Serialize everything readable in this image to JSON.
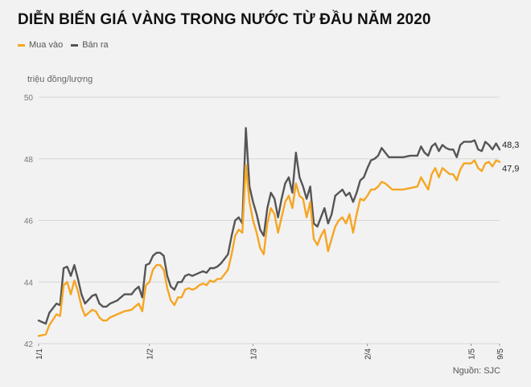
{
  "title": "DIỄN BIẾN GIÁ VÀNG TRONG NƯỚC TỪ ĐẦU NĂM 2020",
  "source": "Nguồn: SJC",
  "colors": {
    "buy": "#f5a623",
    "sell": "#555555",
    "grid": "#d6d6d6"
  },
  "chart_data": {
    "type": "line",
    "title": "DIỄN BIẾN GIÁ VÀNG TRONG NƯỚC TỪ ĐẦU NĂM 2020",
    "ylabel": "triệu đồng/lượng",
    "xlabel": "",
    "ylim": [
      42,
      50
    ],
    "yticks": [
      42,
      44,
      46,
      48,
      50
    ],
    "grid": true,
    "legend_position": "top-left",
    "x_domain": [
      "1/1",
      "9/5"
    ],
    "x_ticks": [
      "1/1",
      "1/2",
      "1/3",
      "2/4",
      "1/5",
      "9/5"
    ],
    "end_labels": {
      "buy": "47,9",
      "sell": "48,3"
    },
    "series": [
      {
        "key": "buy",
        "name": "Mua vào",
        "values": [
          [
            "1/1",
            42.25
          ],
          [
            "3/1",
            42.3
          ],
          [
            "4/1",
            42.6
          ],
          [
            "6/1",
            42.95
          ],
          [
            "7/1",
            42.9
          ],
          [
            "8/1",
            43.9
          ],
          [
            "9/1",
            44.0
          ],
          [
            "10/1",
            43.6
          ],
          [
            "11/1",
            44.05
          ],
          [
            "12/1",
            43.7
          ],
          [
            "13/1",
            43.2
          ],
          [
            "14/1",
            42.9
          ],
          [
            "16/1",
            43.1
          ],
          [
            "17/1",
            43.05
          ],
          [
            "18/1",
            42.85
          ],
          [
            "19/1",
            42.75
          ],
          [
            "20/1",
            42.75
          ],
          [
            "21/1",
            42.85
          ],
          [
            "22/1",
            42.9
          ],
          [
            "23/1",
            42.95
          ],
          [
            "24/1",
            43.0
          ],
          [
            "25/1",
            43.05
          ],
          [
            "27/1",
            43.1
          ],
          [
            "28/1",
            43.2
          ],
          [
            "29/1",
            43.3
          ],
          [
            "30/1",
            43.05
          ],
          [
            "31/1",
            43.9
          ],
          [
            "1/2",
            44.0
          ],
          [
            "2/2",
            44.4
          ],
          [
            "3/2",
            44.55
          ],
          [
            "4/2",
            44.55
          ],
          [
            "5/2",
            44.4
          ],
          [
            "6/2",
            43.8
          ],
          [
            "7/2",
            43.4
          ],
          [
            "8/2",
            43.25
          ],
          [
            "9/2",
            43.5
          ],
          [
            "10/2",
            43.5
          ],
          [
            "11/2",
            43.75
          ],
          [
            "12/2",
            43.8
          ],
          [
            "13/2",
            43.75
          ],
          [
            "14/2",
            43.8
          ],
          [
            "15/2",
            43.9
          ],
          [
            "16/2",
            43.95
          ],
          [
            "17/2",
            43.9
          ],
          [
            "18/2",
            44.05
          ],
          [
            "19/2",
            44.0
          ],
          [
            "20/2",
            44.1
          ],
          [
            "21/2",
            44.1
          ],
          [
            "22/2",
            44.25
          ],
          [
            "23/2",
            44.4
          ],
          [
            "24/2",
            44.9
          ],
          [
            "25/2",
            45.5
          ],
          [
            "26/2",
            45.7
          ],
          [
            "27/2",
            45.6
          ],
          [
            "28/2",
            47.8
          ],
          [
            "29/2",
            46.6
          ],
          [
            "1/3",
            46.0
          ],
          [
            "2/3",
            45.6
          ],
          [
            "3/3",
            45.1
          ],
          [
            "4/3",
            44.9
          ],
          [
            "5/3",
            45.9
          ],
          [
            "6/3",
            46.4
          ],
          [
            "7/3",
            46.2
          ],
          [
            "8/3",
            45.6
          ],
          [
            "9/3",
            46.1
          ],
          [
            "10/3",
            46.6
          ],
          [
            "11/3",
            46.8
          ],
          [
            "12/3",
            46.4
          ],
          [
            "13/3",
            47.2
          ],
          [
            "14/3",
            46.8
          ],
          [
            "15/3",
            46.7
          ],
          [
            "16/3",
            46.1
          ],
          [
            "17/3",
            46.6
          ],
          [
            "18/3",
            45.4
          ],
          [
            "19/3",
            45.2
          ],
          [
            "20/3",
            45.5
          ],
          [
            "21/3",
            45.7
          ],
          [
            "22/3",
            45.0
          ],
          [
            "23/3",
            45.4
          ],
          [
            "24/3",
            45.8
          ],
          [
            "25/3",
            46.0
          ],
          [
            "26/3",
            46.1
          ],
          [
            "27/3",
            45.9
          ],
          [
            "28/3",
            46.2
          ],
          [
            "29/3",
            45.6
          ],
          [
            "30/3",
            46.2
          ],
          [
            "31/3",
            46.7
          ],
          [
            "1/4",
            46.65
          ],
          [
            "2/4",
            46.8
          ],
          [
            "3/4",
            47.0
          ],
          [
            "4/4",
            47.0
          ],
          [
            "5/4",
            47.1
          ],
          [
            "6/4",
            47.25
          ],
          [
            "7/4",
            47.2
          ],
          [
            "8/4",
            47.1
          ],
          [
            "9/4",
            47.0
          ],
          [
            "12/4",
            47.0
          ],
          [
            "14/4",
            47.05
          ],
          [
            "16/4",
            47.1
          ],
          [
            "17/4",
            47.4
          ],
          [
            "18/4",
            47.2
          ],
          [
            "19/4",
            47.0
          ],
          [
            "20/4",
            47.5
          ],
          [
            "21/4",
            47.7
          ],
          [
            "22/4",
            47.4
          ],
          [
            "23/4",
            47.7
          ],
          [
            "24/4",
            47.6
          ],
          [
            "25/4",
            47.5
          ],
          [
            "26/4",
            47.5
          ],
          [
            "27/4",
            47.3
          ],
          [
            "28/4",
            47.65
          ],
          [
            "29/4",
            47.85
          ],
          [
            "30/4",
            47.85
          ],
          [
            "1/5",
            47.85
          ],
          [
            "2/5",
            47.95
          ],
          [
            "3/5",
            47.7
          ],
          [
            "4/5",
            47.6
          ],
          [
            "5/5",
            47.85
          ],
          [
            "6/5",
            47.9
          ],
          [
            "7/5",
            47.75
          ],
          [
            "8/5",
            47.95
          ],
          [
            "9/5",
            47.9
          ]
        ]
      },
      {
        "key": "sell",
        "name": "Bán ra",
        "values": [
          [
            "1/1",
            42.75
          ],
          [
            "3/1",
            42.65
          ],
          [
            "4/1",
            43.0
          ],
          [
            "6/1",
            43.3
          ],
          [
            "7/1",
            43.25
          ],
          [
            "8/1",
            44.45
          ],
          [
            "9/1",
            44.5
          ],
          [
            "10/1",
            44.2
          ],
          [
            "11/1",
            44.55
          ],
          [
            "12/1",
            44.1
          ],
          [
            "13/1",
            43.6
          ],
          [
            "14/1",
            43.3
          ],
          [
            "16/1",
            43.55
          ],
          [
            "17/1",
            43.6
          ],
          [
            "18/1",
            43.3
          ],
          [
            "19/1",
            43.2
          ],
          [
            "20/1",
            43.2
          ],
          [
            "21/1",
            43.3
          ],
          [
            "22/1",
            43.35
          ],
          [
            "23/1",
            43.4
          ],
          [
            "24/1",
            43.5
          ],
          [
            "25/1",
            43.6
          ],
          [
            "27/1",
            43.6
          ],
          [
            "28/1",
            43.75
          ],
          [
            "29/1",
            43.85
          ],
          [
            "30/1",
            43.5
          ],
          [
            "31/1",
            44.55
          ],
          [
            "1/2",
            44.6
          ],
          [
            "2/2",
            44.85
          ],
          [
            "3/2",
            44.95
          ],
          [
            "4/2",
            44.95
          ],
          [
            "5/2",
            44.85
          ],
          [
            "6/2",
            44.2
          ],
          [
            "7/2",
            43.85
          ],
          [
            "8/2",
            43.75
          ],
          [
            "9/2",
            44.0
          ],
          [
            "10/2",
            44.0
          ],
          [
            "11/2",
            44.2
          ],
          [
            "12/2",
            44.25
          ],
          [
            "13/2",
            44.2
          ],
          [
            "14/2",
            44.25
          ],
          [
            "15/2",
            44.3
          ],
          [
            "16/2",
            44.35
          ],
          [
            "17/2",
            44.3
          ],
          [
            "18/2",
            44.45
          ],
          [
            "19/2",
            44.45
          ],
          [
            "20/2",
            44.5
          ],
          [
            "21/2",
            44.6
          ],
          [
            "22/2",
            44.75
          ],
          [
            "23/2",
            44.9
          ],
          [
            "24/2",
            45.5
          ],
          [
            "25/2",
            46.0
          ],
          [
            "26/2",
            46.1
          ],
          [
            "27/2",
            45.9
          ],
          [
            "28/2",
            49.0
          ],
          [
            "29/2",
            47.1
          ],
          [
            "1/3",
            46.6
          ],
          [
            "2/3",
            46.2
          ],
          [
            "3/3",
            45.7
          ],
          [
            "4/3",
            45.5
          ],
          [
            "5/3",
            46.4
          ],
          [
            "6/3",
            46.9
          ],
          [
            "7/3",
            46.7
          ],
          [
            "8/3",
            46.1
          ],
          [
            "9/3",
            46.7
          ],
          [
            "10/3",
            47.2
          ],
          [
            "11/3",
            47.4
          ],
          [
            "12/3",
            46.9
          ],
          [
            "13/3",
            48.2
          ],
          [
            "14/3",
            47.4
          ],
          [
            "15/3",
            47.1
          ],
          [
            "16/3",
            46.7
          ],
          [
            "17/3",
            47.1
          ],
          [
            "18/3",
            45.9
          ],
          [
            "19/3",
            45.8
          ],
          [
            "20/3",
            46.1
          ],
          [
            "21/3",
            46.4
          ],
          [
            "22/3",
            45.9
          ],
          [
            "23/3",
            46.2
          ],
          [
            "24/3",
            46.8
          ],
          [
            "25/3",
            46.9
          ],
          [
            "26/3",
            47.0
          ],
          [
            "27/3",
            46.8
          ],
          [
            "28/3",
            46.9
          ],
          [
            "29/3",
            46.6
          ],
          [
            "30/3",
            46.9
          ],
          [
            "31/3",
            47.3
          ],
          [
            "1/4",
            47.4
          ],
          [
            "2/4",
            47.7
          ],
          [
            "3/4",
            47.95
          ],
          [
            "4/4",
            48.0
          ],
          [
            "5/4",
            48.1
          ],
          [
            "6/4",
            48.35
          ],
          [
            "7/4",
            48.2
          ],
          [
            "8/4",
            48.05
          ],
          [
            "9/4",
            48.05
          ],
          [
            "12/4",
            48.05
          ],
          [
            "14/4",
            48.1
          ],
          [
            "16/4",
            48.1
          ],
          [
            "17/4",
            48.4
          ],
          [
            "18/4",
            48.2
          ],
          [
            "19/4",
            48.1
          ],
          [
            "20/4",
            48.4
          ],
          [
            "21/4",
            48.5
          ],
          [
            "22/4",
            48.25
          ],
          [
            "23/4",
            48.45
          ],
          [
            "24/4",
            48.35
          ],
          [
            "25/4",
            48.3
          ],
          [
            "26/4",
            48.3
          ],
          [
            "27/4",
            48.05
          ],
          [
            "28/4",
            48.45
          ],
          [
            "29/4",
            48.55
          ],
          [
            "30/4",
            48.55
          ],
          [
            "1/5",
            48.55
          ],
          [
            "2/5",
            48.6
          ],
          [
            "3/5",
            48.3
          ],
          [
            "4/5",
            48.25
          ],
          [
            "5/5",
            48.55
          ],
          [
            "6/5",
            48.45
          ],
          [
            "7/5",
            48.3
          ],
          [
            "8/5",
            48.5
          ],
          [
            "9/5",
            48.3
          ]
        ]
      }
    ]
  }
}
